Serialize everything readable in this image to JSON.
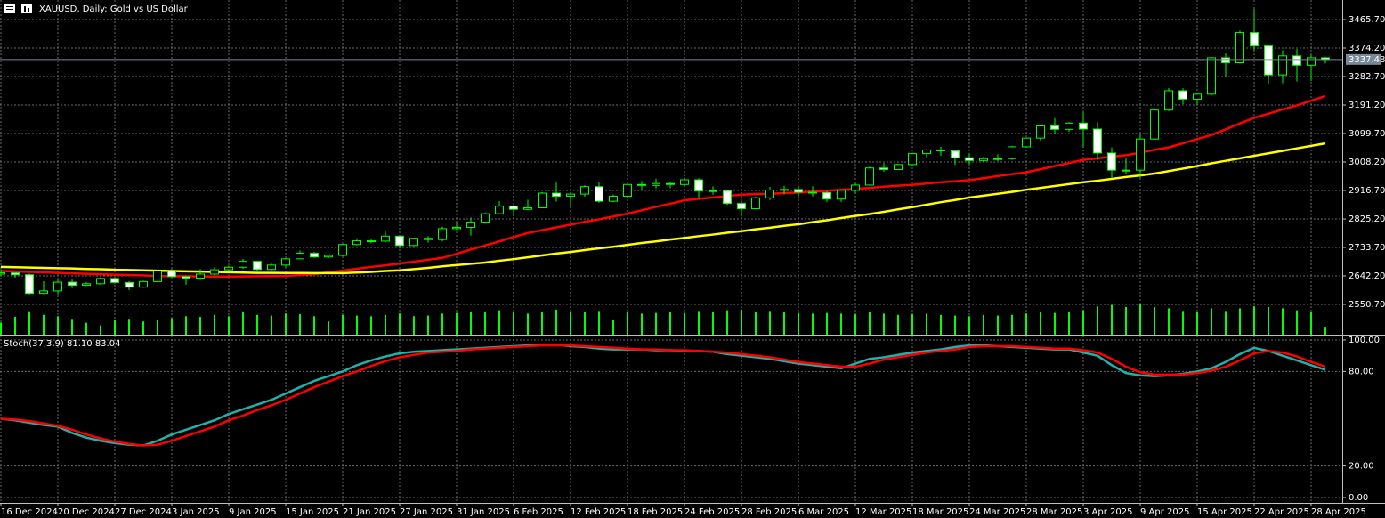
{
  "chart_data": [
    {
      "type": "candlestick",
      "title": "XAUUSD, Daily:  Gold vs US Dollar",
      "categories": [
        "16 Dec 2024",
        null,
        null,
        null,
        "20 Dec 2024",
        null,
        null,
        null,
        "27 Dec 2024",
        null,
        null,
        null,
        "3 Jan 2025",
        null,
        null,
        null,
        "9 Jan 2025",
        null,
        null,
        null,
        "15 Jan 2025",
        null,
        null,
        null,
        "21 Jan 2025",
        null,
        null,
        null,
        "27 Jan 2025",
        null,
        null,
        null,
        "31 Jan 2025",
        null,
        null,
        null,
        "6 Feb 2025",
        null,
        null,
        null,
        "12 Feb 2025",
        null,
        null,
        null,
        "18 Feb 2025",
        null,
        null,
        null,
        "24 Feb 2025",
        null,
        null,
        null,
        "28 Feb 2025",
        null,
        null,
        null,
        "6 Mar 2025",
        null,
        null,
        null,
        "12 Mar 2025",
        null,
        null,
        null,
        "18 Mar 2025",
        null,
        null,
        null,
        "24 Mar 2025",
        null,
        null,
        null,
        "28 Mar 2025",
        null,
        null,
        null,
        "3 Apr 2025",
        null,
        null,
        null,
        "9 Apr 2025",
        null,
        null,
        null,
        "15 Apr 2025",
        null,
        null,
        null,
        "22 Apr 2025",
        null,
        null,
        null,
        "28 Apr 2025",
        null
      ],
      "open": [
        2648,
        2652,
        2646,
        2586,
        2594,
        2622,
        2612,
        2617,
        2634,
        2621,
        2606,
        2624,
        2658,
        2640,
        2635,
        2648,
        2662,
        2670,
        2689,
        2663,
        2677,
        2697,
        2715,
        2703,
        2708,
        2743,
        2755,
        2754,
        2770,
        2740,
        2763,
        2759,
        2794,
        2798,
        2815,
        2842,
        2866,
        2856,
        2861,
        2908,
        2898,
        2905,
        2929,
        2882,
        2898,
        2936,
        2933,
        2939,
        2936,
        2951,
        2915,
        2916,
        2875,
        2858,
        2893,
        2918,
        2920,
        2911,
        2910,
        2889,
        2917,
        2934,
        2989,
        2984,
        3000,
        3035,
        3047,
        3044,
        3022,
        3013,
        3019,
        3019,
        3057,
        3085,
        3124,
        3113,
        3133,
        3114,
        3037,
        2982,
        2982,
        3082,
        3175,
        3237,
        3210,
        3226,
        3343,
        3327,
        3424,
        3381,
        3288,
        3349,
        3319,
        3343
      ],
      "high": [
        2664,
        2653,
        2650,
        2625,
        2632,
        2630,
        2622,
        2638,
        2639,
        2625,
        2627,
        2661,
        2665,
        2643,
        2664,
        2670,
        2675,
        2697,
        2690,
        2682,
        2700,
        2724,
        2719,
        2711,
        2745,
        2763,
        2759,
        2786,
        2772,
        2765,
        2770,
        2800,
        2817,
        2830,
        2845,
        2882,
        2870,
        2887,
        2911,
        2942,
        2910,
        2934,
        2942,
        2904,
        2938,
        2947,
        2955,
        2944,
        2956,
        2956,
        2930,
        2920,
        2882,
        2897,
        2928,
        2931,
        2930,
        2930,
        2915,
        2920,
        2940,
        2993,
        3005,
        3003,
        3038,
        3050,
        3057,
        3048,
        3036,
        3025,
        3033,
        3060,
        3087,
        3128,
        3149,
        3136,
        3168,
        3136,
        3055,
        3023,
        3099,
        3176,
        3246,
        3245,
        3229,
        3346,
        3357,
        3430,
        3500,
        3386,
        3367,
        3371,
        3353,
        3345
      ],
      "low": [
        2643,
        2637,
        2583,
        2584,
        2583,
        2603,
        2610,
        2613,
        2617,
        2597,
        2604,
        2622,
        2637,
        2614,
        2629,
        2644,
        2656,
        2665,
        2656,
        2660,
        2670,
        2695,
        2700,
        2699,
        2703,
        2740,
        2747,
        2750,
        2730,
        2737,
        2749,
        2753,
        2790,
        2772,
        2810,
        2840,
        2834,
        2853,
        2860,
        2881,
        2864,
        2897,
        2877,
        2879,
        2895,
        2917,
        2923,
        2924,
        2931,
        2890,
        2903,
        2870,
        2833,
        2856,
        2886,
        2904,
        2895,
        2897,
        2880,
        2880,
        2906,
        2932,
        2977,
        2982,
        2997,
        3022,
        3028,
        2999,
        3000,
        3008,
        3011,
        3015,
        3054,
        3077,
        3100,
        3105,
        3054,
        3015,
        2957,
        2971,
        2957,
        3080,
        3172,
        3194,
        3192,
        3222,
        3284,
        3325,
        3366,
        3260,
        3261,
        3267,
        3268,
        3325
      ],
      "close": [
        2652,
        2646,
        2586,
        2594,
        2622,
        2612,
        2617,
        2634,
        2621,
        2606,
        2624,
        2658,
        2640,
        2635,
        2648,
        2662,
        2670,
        2689,
        2663,
        2677,
        2697,
        2715,
        2703,
        2708,
        2743,
        2755,
        2754,
        2770,
        2740,
        2763,
        2759,
        2794,
        2798,
        2815,
        2842,
        2866,
        2856,
        2861,
        2908,
        2898,
        2905,
        2929,
        2882,
        2898,
        2936,
        2933,
        2939,
        2936,
        2951,
        2915,
        2916,
        2875,
        2858,
        2893,
        2918,
        2920,
        2911,
        2910,
        2889,
        2917,
        2934,
        2989,
        2984,
        3000,
        3035,
        3047,
        3044,
        3022,
        3013,
        3019,
        3019,
        3057,
        3085,
        3124,
        3113,
        3133,
        3114,
        3037,
        2982,
        2982,
        3082,
        3175,
        3237,
        3210,
        3226,
        3343,
        3327,
        3424,
        3381,
        3288,
        3349,
        3319,
        3343,
        3337.48
      ],
      "volume": [
        92000,
        135000,
        178000,
        150000,
        140000,
        120000,
        90000,
        70000,
        110000,
        120000,
        100000,
        115000,
        125000,
        140000,
        135000,
        150000,
        140000,
        170000,
        150000,
        145000,
        160000,
        155000,
        140000,
        100000,
        150000,
        145000,
        140000,
        150000,
        160000,
        140000,
        145000,
        160000,
        165000,
        170000,
        175000,
        185000,
        170000,
        160000,
        175000,
        190000,
        170000,
        175000,
        180000,
        110000,
        170000,
        160000,
        165000,
        170000,
        165000,
        180000,
        175000,
        185000,
        190000,
        175000,
        180000,
        170000,
        165000,
        160000,
        165000,
        160000,
        155000,
        170000,
        160000,
        150000,
        155000,
        160000,
        150000,
        145000,
        140000,
        150000,
        145000,
        150000,
        160000,
        170000,
        165000,
        175000,
        185000,
        215000,
        225000,
        210000,
        230000,
        210000,
        200000,
        180000,
        175000,
        200000,
        180000,
        200000,
        215000,
        210000,
        200000,
        185000,
        170000,
        60000
      ],
      "series": [
        {
          "color": "#ff0000",
          "values": [
            2658,
            2656.5,
            2655,
            2653.5,
            2652,
            2650.5,
            2649,
            2647.5,
            2646,
            2645,
            2643.5,
            2642,
            2641,
            2641,
            2640.5,
            2640,
            2640,
            2640.5,
            2641,
            2641.5,
            2642,
            2645,
            2648,
            2654,
            2659,
            2665,
            2671,
            2676,
            2682,
            2688,
            2694,
            2700,
            2713,
            2727,
            2740,
            2753,
            2767,
            2780,
            2789,
            2798,
            2807,
            2816,
            2824,
            2833,
            2842,
            2853,
            2864,
            2874,
            2885,
            2890,
            2894,
            2899,
            2903,
            2905,
            2906,
            2908,
            2910,
            2913,
            2916,
            2919,
            2922,
            2925,
            2929,
            2932,
            2935,
            2939,
            2943,
            2946,
            2950,
            2956,
            2963,
            2969,
            2975,
            2985,
            2995,
            3005,
            3015,
            3020,
            3025,
            3030,
            3038,
            3047,
            3055,
            3068,
            3082,
            3095,
            3113,
            3132,
            3150,
            3163,
            3177,
            3190,
            3205,
            3220
          ]
        },
        {
          "color": "#ffff00",
          "values": [
            2671,
            2670,
            2669,
            2668,
            2667,
            2666,
            2664.5,
            2663.5,
            2662,
            2661,
            2660,
            2659,
            2658,
            2657,
            2656,
            2655,
            2654,
            2653,
            2652,
            2652,
            2651.5,
            2651.5,
            2651,
            2651,
            2651,
            2653,
            2655,
            2658,
            2660,
            2664,
            2668,
            2673,
            2677,
            2681,
            2685,
            2691,
            2696,
            2702,
            2708,
            2714,
            2719,
            2725,
            2731,
            2736,
            2742,
            2748,
            2753,
            2759,
            2764,
            2770,
            2775,
            2781,
            2786,
            2792,
            2797,
            2803,
            2808,
            2815,
            2821,
            2828,
            2835,
            2841,
            2848,
            2856,
            2863,
            2871,
            2879,
            2886,
            2894,
            2900,
            2906,
            2912,
            2919,
            2925,
            2931,
            2937,
            2943,
            2948,
            2954,
            2960,
            2965,
            2971,
            2979,
            2987,
            2995,
            3004,
            3012,
            3020,
            3028,
            3036,
            3044,
            3052,
            3060,
            3068
          ]
        }
      ],
      "ylim": [
        2453.5,
        3528.6
      ],
      "yticks": [
        {
          "value": 3465.7,
          "label": "3465.70"
        },
        {
          "value": 3374.2,
          "label": "3374.20"
        },
        {
          "value": 3282.7,
          "label": "3282.70"
        },
        {
          "value": 3191.2,
          "label": "3191.20"
        },
        {
          "value": 3099.7,
          "label": "3099.70"
        },
        {
          "value": 3008.2,
          "label": "3008.20"
        },
        {
          "value": 2916.7,
          "label": "2916.70"
        },
        {
          "value": 2825.2,
          "label": "2825.20"
        },
        {
          "value": 2733.7,
          "label": "2733.70"
        },
        {
          "value": 2642.2,
          "label": "2642.20"
        },
        {
          "value": 2550.7,
          "label": "2550.70"
        }
      ],
      "grid": true,
      "bull_color": "#000000",
      "bear_color": "#ffffff",
      "wick_color": "#00ff00",
      "volume_color": "#00ff00",
      "last_price_color": "#778899"
    },
    {
      "type": "line",
      "label": "Stoch(37,3,9) 81.10 83.04",
      "series": [
        {
          "color": "#20b2aa",
          "values": [
            50,
            49,
            47.5,
            46,
            45,
            41,
            38,
            36,
            34.5,
            33.5,
            33,
            36,
            40,
            43,
            46,
            49,
            53,
            56,
            59,
            62,
            66,
            70,
            74,
            77,
            80,
            84,
            87,
            89.5,
            91.5,
            92.5,
            93,
            93.5,
            94,
            94.5,
            95,
            95.5,
            96,
            96.5,
            97,
            97,
            96,
            95.5,
            94.5,
            94,
            94,
            94,
            93.5,
            93.5,
            93,
            93,
            92.5,
            91,
            90,
            89,
            88,
            86.5,
            85,
            84,
            83,
            82,
            85,
            88,
            89,
            90.5,
            92,
            93,
            94,
            95.5,
            96.5,
            96.6,
            96,
            95.5,
            95,
            94.5,
            94,
            94,
            92,
            90,
            84,
            79,
            77.5,
            77,
            77.5,
            78.5,
            80,
            82,
            86,
            91,
            95,
            93,
            90,
            87,
            84,
            81.1
          ]
        },
        {
          "color": "#ff0000",
          "values": [
            50,
            49.5,
            48.5,
            47,
            45.5,
            43,
            40,
            37.5,
            35.5,
            34,
            33,
            33.5,
            36,
            39,
            42,
            45,
            49,
            52,
            55.5,
            58.5,
            62,
            66,
            70,
            73.5,
            77,
            80,
            83.5,
            86.5,
            89,
            90.5,
            92,
            92.5,
            93,
            94,
            94.5,
            95,
            95.5,
            96,
            96.5,
            96.5,
            96.5,
            96,
            95.5,
            95,
            94.5,
            94,
            94,
            93.5,
            93.5,
            93,
            92.5,
            92,
            91,
            90,
            89,
            87.5,
            86,
            85,
            84,
            83,
            83,
            85,
            87.5,
            89,
            90.5,
            92,
            93,
            94,
            95.5,
            96,
            96,
            96,
            95.5,
            95,
            94.5,
            94.5,
            93.5,
            92,
            88,
            83,
            79.5,
            78,
            78,
            78,
            79,
            80.5,
            83,
            87,
            91.5,
            93,
            92,
            89.5,
            86,
            83.04
          ]
        }
      ],
      "ylim": [
        -3.4,
        102.8
      ],
      "yticks": [
        {
          "value": 100,
          "label": "100.00"
        },
        {
          "value": 80,
          "label": "80.00"
        },
        {
          "value": 20,
          "label": "20.00"
        },
        {
          "value": 0,
          "label": "0.00"
        }
      ],
      "grid": true
    }
  ]
}
